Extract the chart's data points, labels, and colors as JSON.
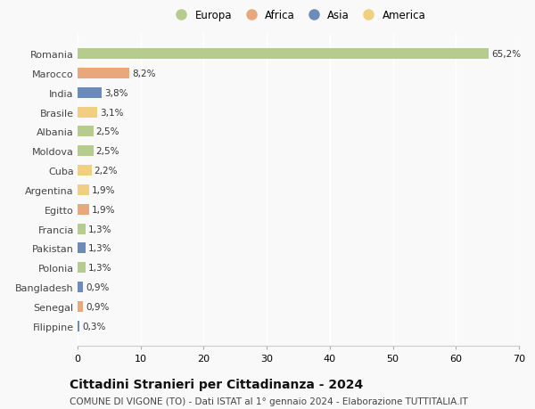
{
  "countries": [
    "Romania",
    "Marocco",
    "India",
    "Brasile",
    "Albania",
    "Moldova",
    "Cuba",
    "Argentina",
    "Egitto",
    "Francia",
    "Pakistan",
    "Polonia",
    "Bangladesh",
    "Senegal",
    "Filippine"
  ],
  "values": [
    65.2,
    8.2,
    3.8,
    3.1,
    2.5,
    2.5,
    2.2,
    1.9,
    1.9,
    1.3,
    1.3,
    1.3,
    0.9,
    0.9,
    0.3
  ],
  "labels": [
    "65,2%",
    "8,2%",
    "3,8%",
    "3,1%",
    "2,5%",
    "2,5%",
    "2,2%",
    "1,9%",
    "1,9%",
    "1,3%",
    "1,3%",
    "1,3%",
    "0,9%",
    "0,9%",
    "0,3%"
  ],
  "continents": [
    "Europa",
    "Africa",
    "Asia",
    "America",
    "Europa",
    "Europa",
    "America",
    "America",
    "Africa",
    "Europa",
    "Asia",
    "Europa",
    "Asia",
    "Africa",
    "Asia"
  ],
  "continent_colors": {
    "Europa": "#b5cc8e",
    "Africa": "#e8a87c",
    "Asia": "#6b8cba",
    "America": "#f0d080"
  },
  "legend_order": [
    "Europa",
    "Africa",
    "Asia",
    "America"
  ],
  "title": "Cittadini Stranieri per Cittadinanza - 2024",
  "subtitle": "COMUNE DI VIGONE (TO) - Dati ISTAT al 1° gennaio 2024 - Elaborazione TUTTITALIA.IT",
  "xlim": [
    0,
    70
  ],
  "xticks": [
    0,
    10,
    20,
    30,
    40,
    50,
    60,
    70
  ],
  "background_color": "#f9f9f9",
  "grid_color": "#ffffff",
  "bar_height": 0.55,
  "label_fontsize": 7.5,
  "ytick_fontsize": 8,
  "xtick_fontsize": 8,
  "title_fontsize": 10,
  "subtitle_fontsize": 7.5
}
